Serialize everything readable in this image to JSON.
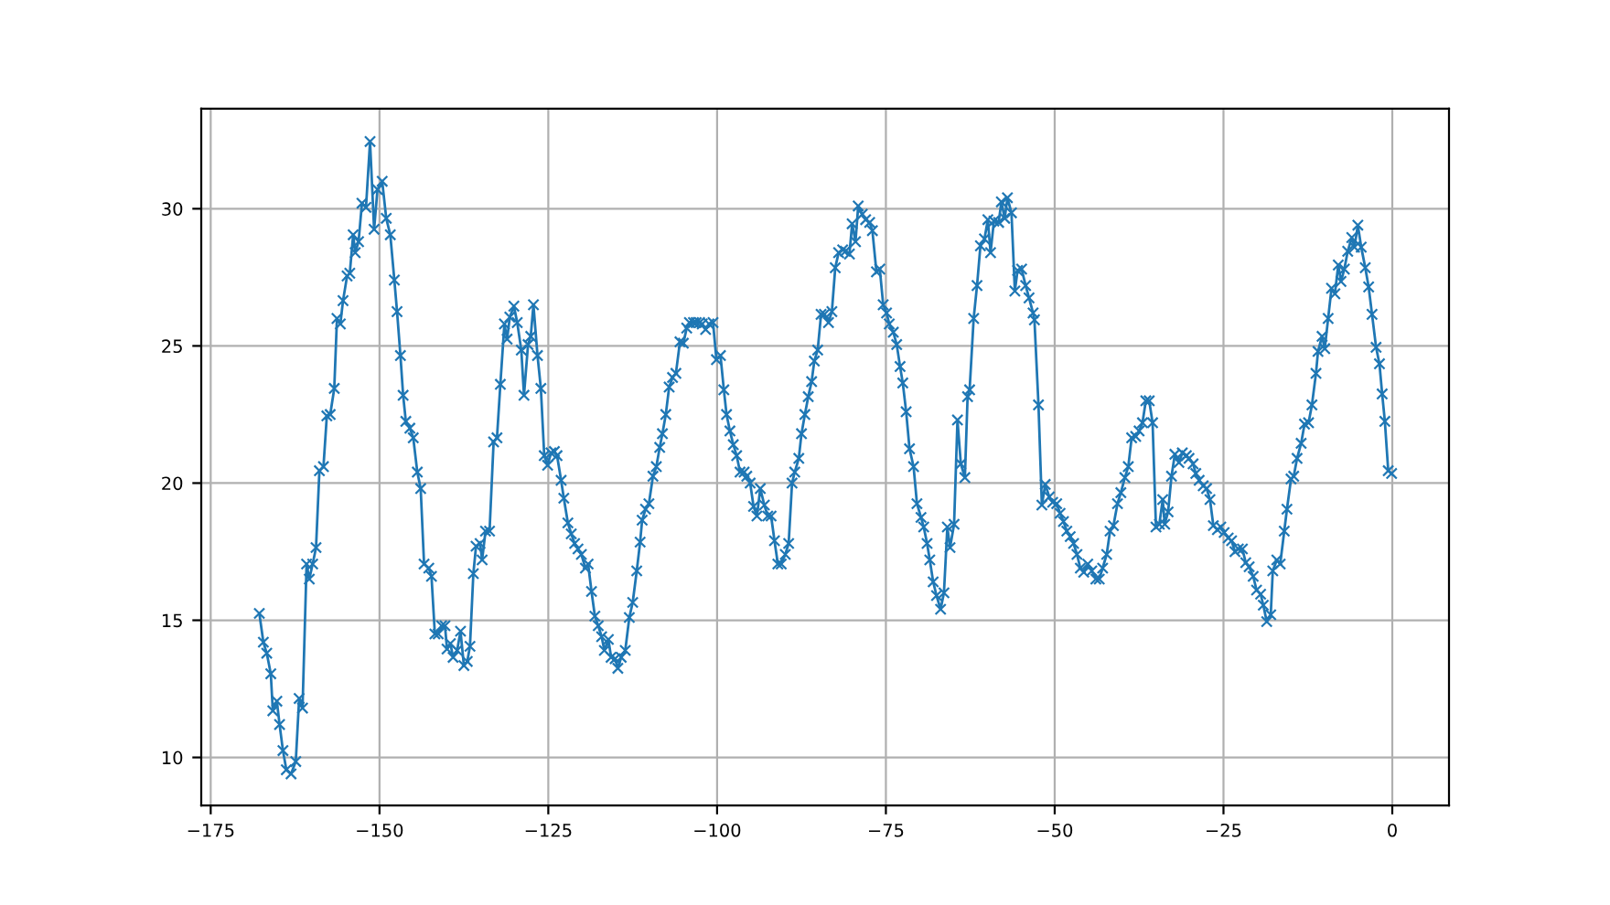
{
  "chart_data": {
    "type": "line",
    "color": "#1f77b4",
    "marker": "cross",
    "grid": true,
    "xlim": [
      -176.4,
      8.4
    ],
    "ylim": [
      8.25,
      33.65
    ],
    "xticks": [
      {
        "value": -175,
        "label": "−175"
      },
      {
        "value": -150,
        "label": "−150"
      },
      {
        "value": -125,
        "label": "−125"
      },
      {
        "value": -100,
        "label": "−100"
      },
      {
        "value": -75,
        "label": "−75"
      },
      {
        "value": -50,
        "label": "−50"
      },
      {
        "value": -25,
        "label": "−25"
      },
      0
    ],
    "yticks": [
      10,
      15,
      20,
      25,
      30
    ],
    "x": [
      -167.8,
      -167.2,
      -166.7,
      -166.1,
      -165.8,
      -165.2,
      -164.8,
      -164.3,
      -163.8,
      -163.1,
      -162.4,
      -161.9,
      -161.4,
      -160.8,
      -160.4,
      -159.9,
      -159.4,
      -158.9,
      -158.3,
      -157.8,
      -157.3,
      -156.7,
      -156.3,
      -155.8,
      -155.4,
      -154.8,
      -154.4,
      -153.9,
      -153.6,
      -153.1,
      -152.6,
      -152.0,
      -151.4,
      -150.8,
      -150.3,
      -149.6,
      -149.0,
      -148.4,
      -147.8,
      -147.4,
      -146.9,
      -146.5,
      -146.1,
      -145.5,
      -145.0,
      -144.4,
      -143.9,
      -143.4,
      -142.7,
      -142.3,
      -141.8,
      -141.3,
      -140.8,
      -140.3,
      -140.0,
      -139.5,
      -139.1,
      -138.5,
      -138.0,
      -137.5,
      -137.0,
      -136.6,
      -136.1,
      -135.7,
      -135.1,
      -134.8,
      -134.3,
      -133.7,
      -133.1,
      -132.6,
      -132.1,
      -131.5,
      -131.1,
      -130.7,
      -130.1,
      -129.6,
      -129.0,
      -128.6,
      -128.0,
      -127.6,
      -127.2,
      -126.6,
      -126.1,
      -125.6,
      -125.1,
      -124.6,
      -124.1,
      -123.7,
      -123.1,
      -122.7,
      -122.1,
      -121.6,
      -121.1,
      -120.6,
      -120.1,
      -119.5,
      -119.1,
      -118.6,
      -118.1,
      -117.6,
      -117.1,
      -116.7,
      -116.1,
      -115.7,
      -115.1,
      -114.7,
      -114.2,
      -113.6,
      -113.0,
      -112.5,
      -111.9,
      -111.4,
      -111.1,
      -110.6,
      -110.1,
      -109.5,
      -109.0,
      -108.5,
      -108.1,
      -107.6,
      -107.1,
      -106.6,
      -106.1,
      -105.5,
      -105.0,
      -104.5,
      -104.1,
      -103.5,
      -103.1,
      -102.6,
      -102.2,
      -101.7,
      -101.2,
      -100.6,
      -100.1,
      -99.5,
      -99.0,
      -98.6,
      -98.1,
      -97.6,
      -97.1,
      -96.6,
      -96.0,
      -95.6,
      -95.1,
      -94.6,
      -94.1,
      -93.6,
      -93.0,
      -92.5,
      -92.0,
      -91.5,
      -91.0,
      -90.5,
      -89.9,
      -89.4,
      -88.9,
      -88.5,
      -87.9,
      -87.5,
      -87.0,
      -86.5,
      -86.0,
      -85.6,
      -85.1,
      -84.6,
      -84.1,
      -83.5,
      -83.0,
      -82.5,
      -82.0,
      -81.4,
      -81.0,
      -80.4,
      -80.0,
      -79.5,
      -79.1,
      -78.5,
      -78.0,
      -77.4,
      -77.0,
      -76.4,
      -75.9,
      -75.4,
      -74.9,
      -74.5,
      -73.9,
      -73.4,
      -72.9,
      -72.5,
      -72.0,
      -71.5,
      -70.9,
      -70.4,
      -69.8,
      -69.4,
      -68.9,
      -68.5,
      -68.0,
      -67.5,
      -66.9,
      -66.4,
      -65.9,
      -65.5,
      -64.9,
      -64.4,
      -63.9,
      -63.3,
      -62.9,
      -62.6,
      -62.0,
      -61.5,
      -61.0,
      -60.4,
      -59.9,
      -59.5,
      -59.0,
      -58.3,
      -57.9,
      -57.4,
      -57.0,
      -56.4,
      -55.9,
      -55.5,
      -54.9,
      -54.3,
      -53.8,
      -53.2,
      -53.0,
      -52.4,
      -51.9,
      -51.4,
      -50.8,
      -50.3,
      -49.7,
      -49.2,
      -48.7,
      -48.2,
      -47.7,
      -47.2,
      -46.7,
      -46.2,
      -45.7,
      -45.1,
      -44.5,
      -43.9,
      -43.4,
      -42.9,
      -42.3,
      -41.8,
      -41.3,
      -40.7,
      -40.2,
      -39.6,
      -39.1,
      -38.6,
      -38.0,
      -37.5,
      -37.0,
      -36.5,
      -36.0,
      -35.5,
      -35.0,
      -34.5,
      -34.0,
      -33.7,
      -33.2,
      -32.7,
      -32.2,
      -31.6,
      -31.1,
      -30.5,
      -30.1,
      -29.5,
      -29.1,
      -28.6,
      -28.0,
      -27.5,
      -27.0,
      -26.5,
      -25.9,
      -25.4,
      -24.9,
      -24.3,
      -23.8,
      -23.3,
      -22.8,
      -22.2,
      -21.7,
      -21.2,
      -20.6,
      -20.1,
      -19.5,
      -19.1,
      -18.6,
      -18.0,
      -17.7,
      -17.1,
      -16.6,
      -16.0,
      -15.6,
      -15.0,
      -14.6,
      -14.1,
      -13.5,
      -13.0,
      -12.4,
      -11.9,
      -11.3,
      -11.0,
      -10.4,
      -10.0,
      -9.5,
      -9.0,
      -8.5,
      -8.0,
      -7.6,
      -7.1,
      -6.6,
      -6.0,
      -5.6,
      -5.1,
      -4.6,
      -4.0,
      -3.5,
      -3.0,
      -2.4,
      -1.9,
      -1.5,
      -1.1,
      -0.6,
      -0.1
    ],
    "values": [
      15.25,
      14.2,
      13.8,
      13.05,
      11.7,
      12.05,
      11.2,
      10.25,
      9.55,
      9.4,
      9.85,
      12.15,
      11.8,
      17.05,
      16.5,
      17.05,
      17.65,
      20.45,
      20.6,
      22.45,
      22.5,
      23.45,
      26.0,
      25.8,
      26.65,
      27.55,
      27.65,
      29.05,
      28.4,
      28.8,
      30.2,
      30.05,
      32.45,
      29.25,
      30.7,
      31.0,
      29.65,
      29.05,
      27.4,
      26.25,
      24.65,
      23.2,
      22.25,
      22.0,
      21.65,
      20.4,
      19.8,
      17.05,
      16.9,
      16.6,
      14.5,
      14.5,
      14.8,
      14.8,
      13.95,
      14.15,
      13.65,
      13.9,
      14.6,
      13.35,
      13.5,
      14.05,
      16.7,
      17.7,
      17.8,
      17.2,
      18.25,
      18.25,
      21.5,
      21.65,
      23.6,
      25.8,
      25.25,
      26.05,
      26.45,
      25.85,
      24.85,
      23.2,
      25.05,
      25.35,
      26.5,
      24.65,
      23.45,
      21.0,
      20.65,
      21.1,
      21.15,
      21.0,
      20.1,
      19.45,
      18.55,
      18.15,
      17.8,
      17.6,
      17.4,
      16.9,
      17.05,
      16.05,
      15.15,
      14.8,
      14.4,
      13.9,
      14.3,
      13.65,
      13.6,
      13.25,
      13.65,
      13.9,
      15.1,
      15.65,
      16.8,
      17.85,
      18.65,
      19.05,
      19.25,
      20.25,
      20.6,
      21.3,
      21.8,
      22.5,
      23.5,
      23.85,
      24.0,
      25.15,
      25.1,
      25.65,
      25.85,
      25.85,
      25.85,
      25.85,
      25.8,
      25.6,
      25.8,
      25.85,
      24.5,
      24.65,
      23.4,
      22.5,
      21.9,
      21.4,
      21.0,
      20.4,
      20.4,
      20.25,
      20.0,
      19.15,
      18.8,
      19.8,
      19.2,
      18.8,
      18.8,
      17.9,
      17.05,
      17.05,
      17.4,
      17.8,
      20.0,
      20.4,
      20.9,
      21.8,
      22.5,
      23.15,
      23.7,
      24.45,
      24.85,
      26.15,
      26.15,
      25.85,
      26.25,
      27.85,
      28.4,
      28.5,
      28.45,
      28.35,
      29.45,
      28.8,
      30.1,
      29.8,
      29.6,
      29.5,
      29.2,
      27.7,
      27.8,
      26.5,
      26.2,
      25.8,
      25.5,
      25.05,
      24.25,
      23.65,
      22.6,
      21.25,
      20.6,
      19.25,
      18.75,
      18.4,
      17.8,
      17.2,
      16.4,
      15.9,
      15.4,
      16.0,
      18.4,
      17.65,
      18.5,
      22.3,
      20.7,
      20.2,
      23.15,
      23.4,
      26.0,
      27.2,
      28.65,
      28.9,
      29.6,
      28.4,
      29.55,
      29.5,
      30.25,
      29.65,
      30.4,
      29.85,
      27.0,
      27.75,
      27.8,
      27.2,
      26.75,
      26.2,
      25.95,
      22.85,
      19.2,
      19.95,
      19.5,
      19.3,
      19.25,
      18.9,
      18.6,
      18.25,
      18.05,
      17.8,
      17.4,
      16.9,
      16.75,
      17.05,
      16.8,
      16.5,
      16.5,
      16.9,
      17.4,
      18.25,
      18.45,
      19.25,
      19.65,
      20.2,
      20.6,
      21.65,
      21.7,
      21.9,
      22.2,
      23.0,
      23.0,
      22.2,
      18.4,
      18.5,
      19.4,
      18.5,
      18.95,
      20.25,
      21.05,
      20.75,
      21.1,
      21.0,
      20.9,
      20.7,
      20.35,
      20.1,
      19.9,
      19.8,
      19.4,
      18.45,
      18.3,
      18.4,
      18.2,
      18.0,
      17.9,
      17.5,
      17.6,
      17.6,
      17.1,
      16.95,
      16.6,
      16.1,
      15.95,
      15.55,
      14.95,
      15.2,
      16.8,
      17.2,
      17.05,
      18.25,
      19.05,
      20.15,
      20.25,
      20.9,
      21.45,
      22.15,
      22.2,
      22.85,
      24.0,
      24.8,
      25.35,
      24.9,
      26.0,
      27.1,
      26.9,
      27.95,
      27.35,
      27.8,
      28.45,
      28.95,
      28.6,
      29.4,
      28.6,
      27.85,
      27.15,
      26.15,
      24.95,
      24.35,
      23.25,
      22.25,
      20.45,
      20.35
    ]
  }
}
